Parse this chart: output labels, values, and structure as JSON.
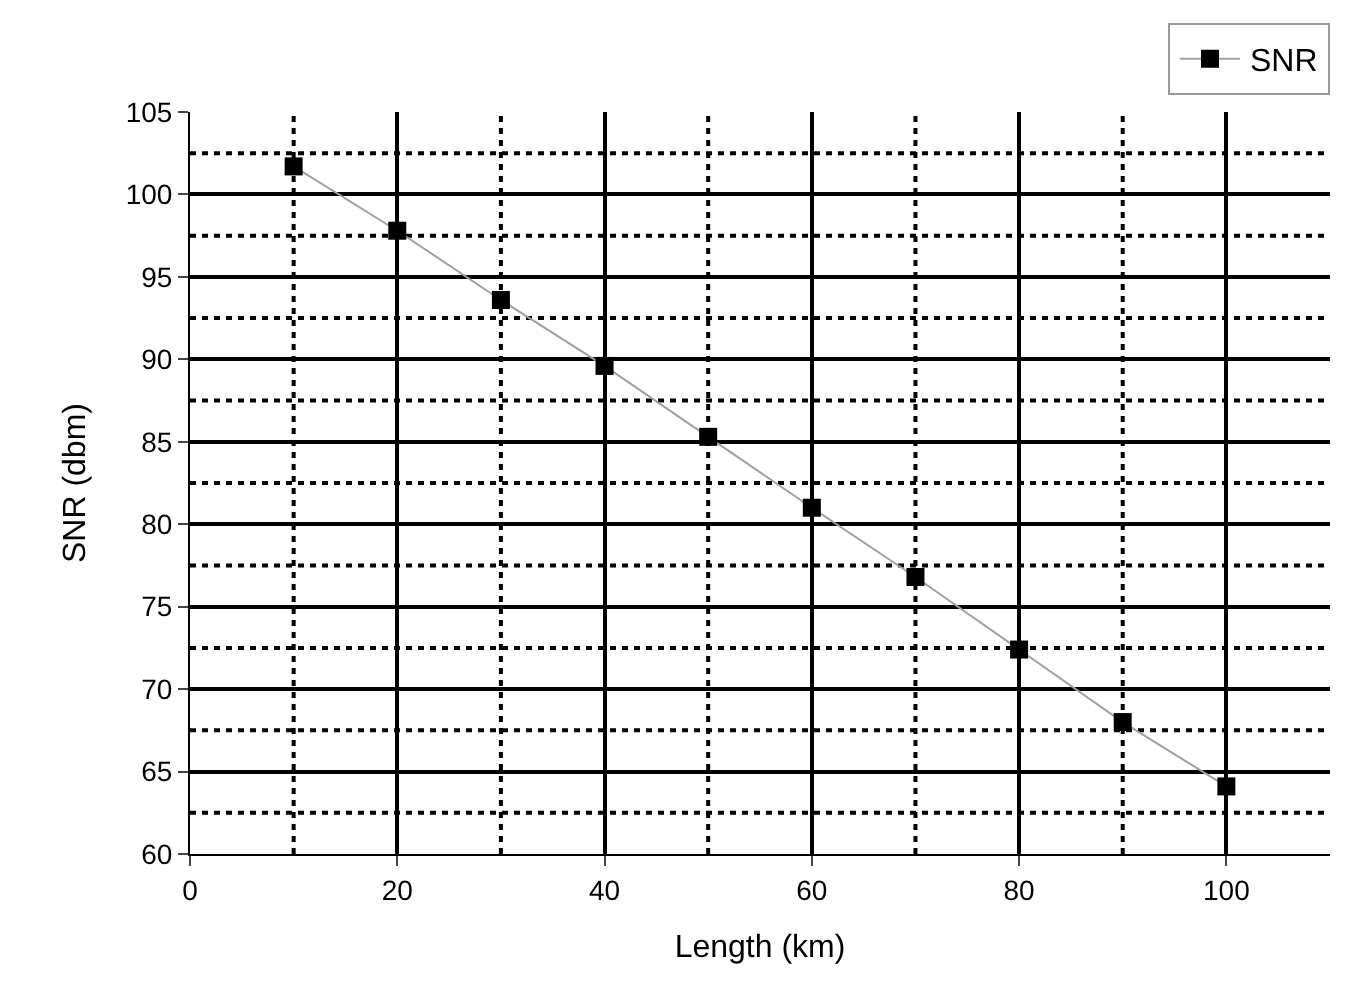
{
  "chart_data": {
    "type": "line",
    "xlabel": "Length (km)",
    "ylabel": "SNR (dbm)",
    "x": [
      10,
      20,
      30,
      40,
      50,
      60,
      70,
      80,
      90,
      100
    ],
    "series": [
      {
        "name": "SNR",
        "color": "#000000",
        "values": [
          101.7,
          97.8,
          93.6,
          89.6,
          85.3,
          81.0,
          76.8,
          72.4,
          68.0,
          64.1
        ]
      }
    ],
    "xlim": [
      0,
      110
    ],
    "ylim": [
      60,
      105
    ],
    "xticks": [
      0,
      20,
      40,
      60,
      80,
      100
    ],
    "yticks": [
      60,
      65,
      70,
      75,
      80,
      85,
      90,
      95,
      100,
      105
    ],
    "grid": true,
    "legend": "top right",
    "marker": "square",
    "line_style": "solid"
  }
}
